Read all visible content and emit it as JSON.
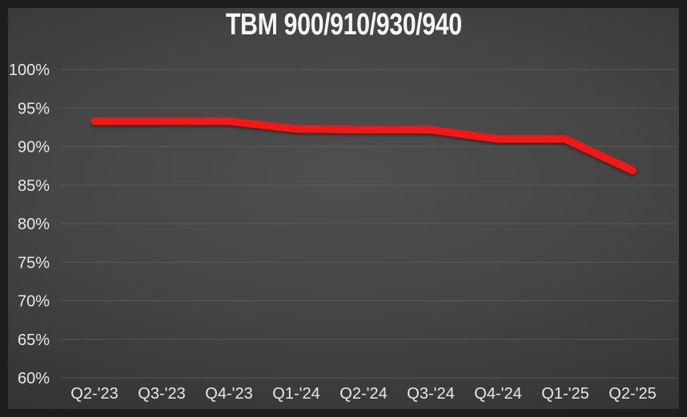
{
  "title": "TBM 900/910/930/940",
  "colors": {
    "line": "#F51414",
    "grid": "#616161",
    "tick_text": "#e8e8e8",
    "title_text": "#f5f5f5",
    "bg_center": "#4f4f4f",
    "bg_edge": "#252525"
  },
  "chart_data": {
    "type": "line",
    "title": "TBM 900/910/930/940",
    "categories": [
      "Q2-'23",
      "Q3-'23",
      "Q4-'23",
      "Q1-'24",
      "Q2-'24",
      "Q3-'24",
      "Q4-'24",
      "Q1-'25",
      "Q2-'25"
    ],
    "series": [
      {
        "name": "TBM 900/910/930/940",
        "values": [
          93.3,
          93.3,
          93.3,
          92.3,
          92.2,
          92.2,
          91.0,
          91.0,
          86.9
        ]
      }
    ],
    "xlabel": "",
    "ylabel": "",
    "ylim": [
      60,
      100
    ],
    "ytick_step": 5,
    "ytick_labels": [
      "100%",
      "95%",
      "90%",
      "85%",
      "80%",
      "75%",
      "70%",
      "65%",
      "60%"
    ],
    "grid": true,
    "legend": false
  }
}
